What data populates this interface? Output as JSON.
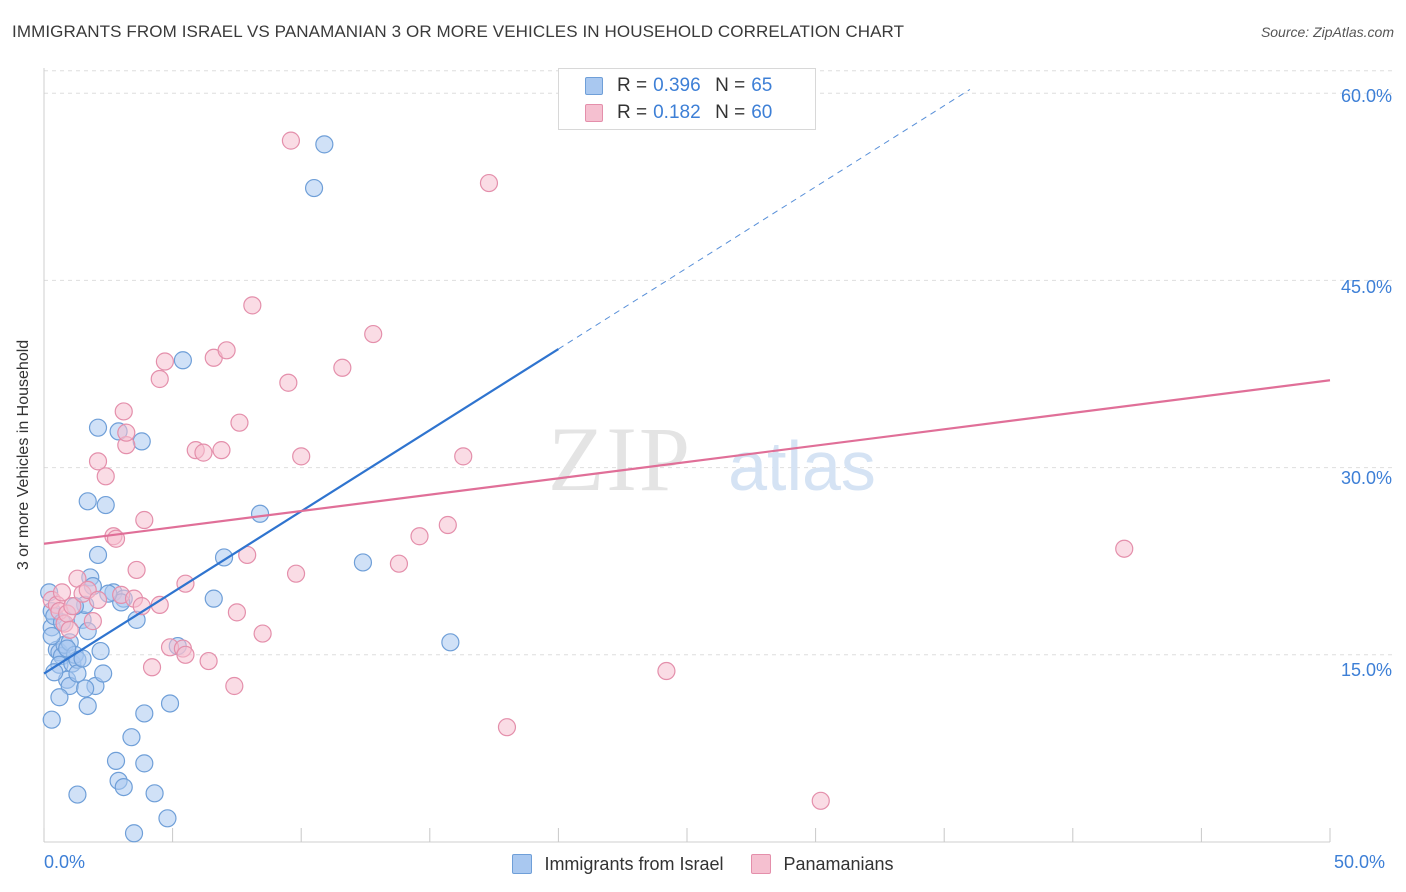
{
  "title": "IMMIGRANTS FROM ISRAEL VS PANAMANIAN 3 OR MORE VEHICLES IN HOUSEHOLD CORRELATION CHART",
  "source": "Source: ZipAtlas.com",
  "watermark": {
    "zip": "ZIP",
    "atlas": "atlas"
  },
  "colors": {
    "blue_fill": "#a9c8f0",
    "blue_stroke": "#6f9fd8",
    "blue_line": "#2f74cf",
    "pink_fill": "#f5c0d0",
    "pink_stroke": "#e48fab",
    "pink_line": "#e06f98",
    "accent_text": "#3d7fd6",
    "grid": "#dedede"
  },
  "legend": {
    "r_label": "R =",
    "n_label": "N =",
    "series": [
      {
        "r": "0.396",
        "n": "65"
      },
      {
        "r": "0.182",
        "n": "60"
      }
    ]
  },
  "chart_data": {
    "type": "scatter",
    "title": "IMMIGRANTS FROM ISRAEL VS PANAMANIAN 3 OR MORE VEHICLES IN HOUSEHOLD CORRELATION CHART",
    "xlabel": "",
    "ylabel": "3 or more Vehicles in Household",
    "xlim": [
      0,
      50
    ],
    "ylim": [
      0,
      62.5
    ],
    "x_tick_labels": [
      "0.0%",
      "50.0%"
    ],
    "y_ticks": [
      15,
      30,
      45,
      60
    ],
    "y_tick_labels": [
      "15.0%",
      "30.0%",
      "45.0%",
      "60.0%"
    ],
    "grid": true,
    "legend_position": "bottom-center",
    "series": [
      {
        "name": "Immigrants from Israel",
        "color": "#a9c8f0",
        "trend": {
          "x0": 0,
          "y0": 13.5,
          "x1": 20,
          "y1": 39.5,
          "dash_to_x": 36,
          "dash_to_y": 60.3
        },
        "points": [
          [
            0.2,
            20.0
          ],
          [
            0.3,
            18.5
          ],
          [
            0.3,
            17.2
          ],
          [
            0.4,
            18.1
          ],
          [
            0.5,
            15.4
          ],
          [
            0.6,
            15.2
          ],
          [
            0.7,
            14.9
          ],
          [
            0.6,
            14.2
          ],
          [
            0.8,
            15.8
          ],
          [
            1.0,
            16.0
          ],
          [
            0.9,
            13.0
          ],
          [
            1.0,
            12.5
          ],
          [
            1.1,
            14.3
          ],
          [
            1.2,
            15.0
          ],
          [
            1.3,
            14.6
          ],
          [
            1.3,
            13.5
          ],
          [
            1.5,
            17.8
          ],
          [
            1.6,
            19.0
          ],
          [
            1.7,
            16.9
          ],
          [
            1.8,
            21.2
          ],
          [
            1.9,
            20.5
          ],
          [
            2.1,
            23.0
          ],
          [
            2.0,
            12.5
          ],
          [
            2.3,
            13.5
          ],
          [
            2.4,
            27.0
          ],
          [
            2.1,
            33.2
          ],
          [
            1.7,
            27.3
          ],
          [
            2.7,
            20.0
          ],
          [
            2.9,
            32.9
          ],
          [
            3.1,
            19.5
          ],
          [
            3.0,
            19.2
          ],
          [
            3.6,
            17.8
          ],
          [
            3.8,
            32.1
          ],
          [
            0.3,
            9.8
          ],
          [
            0.6,
            11.6
          ],
          [
            1.6,
            12.3
          ],
          [
            1.7,
            10.9
          ],
          [
            2.8,
            6.5
          ],
          [
            2.9,
            4.9
          ],
          [
            3.4,
            8.4
          ],
          [
            3.9,
            6.3
          ],
          [
            3.1,
            4.4
          ],
          [
            4.3,
            3.9
          ],
          [
            1.3,
            3.8
          ],
          [
            3.5,
            0.7
          ],
          [
            4.8,
            1.9
          ],
          [
            4.9,
            11.1
          ],
          [
            3.9,
            10.3
          ],
          [
            5.2,
            15.7
          ],
          [
            5.4,
            38.6
          ],
          [
            6.6,
            19.5
          ],
          [
            7.0,
            22.8
          ],
          [
            8.4,
            26.3
          ],
          [
            10.5,
            52.4
          ],
          [
            10.9,
            55.9
          ],
          [
            12.4,
            22.4
          ],
          [
            15.8,
            16.0
          ],
          [
            0.4,
            13.6
          ],
          [
            0.7,
            17.6
          ],
          [
            2.2,
            15.3
          ],
          [
            1.2,
            18.9
          ],
          [
            0.9,
            15.5
          ],
          [
            1.5,
            14.7
          ],
          [
            2.5,
            19.9
          ],
          [
            0.3,
            16.5
          ]
        ]
      },
      {
        "name": "Panamanians",
        "color": "#f5c0d0",
        "trend": {
          "x0": 0,
          "y0": 23.9,
          "x1": 50,
          "y1": 37.0
        },
        "points": [
          [
            0.3,
            19.4
          ],
          [
            0.5,
            19.0
          ],
          [
            0.6,
            18.5
          ],
          [
            0.7,
            20.0
          ],
          [
            0.8,
            17.5
          ],
          [
            0.9,
            18.3
          ],
          [
            1.0,
            17.0
          ],
          [
            1.1,
            18.9
          ],
          [
            1.3,
            21.1
          ],
          [
            1.5,
            19.9
          ],
          [
            1.7,
            20.2
          ],
          [
            1.9,
            17.7
          ],
          [
            2.1,
            19.4
          ],
          [
            2.1,
            30.5
          ],
          [
            2.4,
            29.3
          ],
          [
            2.7,
            24.5
          ],
          [
            2.8,
            24.3
          ],
          [
            3.0,
            19.8
          ],
          [
            3.2,
            31.8
          ],
          [
            3.1,
            34.5
          ],
          [
            3.2,
            32.8
          ],
          [
            3.5,
            19.5
          ],
          [
            3.6,
            21.8
          ],
          [
            3.8,
            18.9
          ],
          [
            3.9,
            25.8
          ],
          [
            4.2,
            14.0
          ],
          [
            4.5,
            19.0
          ],
          [
            4.5,
            37.1
          ],
          [
            4.7,
            38.5
          ],
          [
            4.9,
            15.6
          ],
          [
            5.4,
            15.5
          ],
          [
            5.5,
            20.7
          ],
          [
            5.5,
            15.0
          ],
          [
            5.9,
            31.4
          ],
          [
            6.2,
            31.2
          ],
          [
            6.4,
            14.5
          ],
          [
            6.6,
            38.8
          ],
          [
            6.9,
            31.4
          ],
          [
            7.1,
            39.4
          ],
          [
            7.4,
            12.5
          ],
          [
            7.5,
            18.4
          ],
          [
            7.6,
            33.6
          ],
          [
            7.9,
            23.0
          ],
          [
            8.1,
            43.0
          ],
          [
            8.5,
            16.7
          ],
          [
            9.5,
            36.8
          ],
          [
            9.6,
            56.2
          ],
          [
            9.8,
            21.5
          ],
          [
            10.0,
            30.9
          ],
          [
            11.6,
            38.0
          ],
          [
            12.8,
            40.7
          ],
          [
            13.8,
            22.3
          ],
          [
            14.6,
            24.5
          ],
          [
            15.7,
            25.4
          ],
          [
            16.3,
            30.9
          ],
          [
            17.3,
            52.8
          ],
          [
            18.0,
            9.2
          ],
          [
            24.2,
            13.7
          ],
          [
            30.2,
            3.3
          ],
          [
            42.0,
            23.5
          ]
        ]
      }
    ]
  }
}
